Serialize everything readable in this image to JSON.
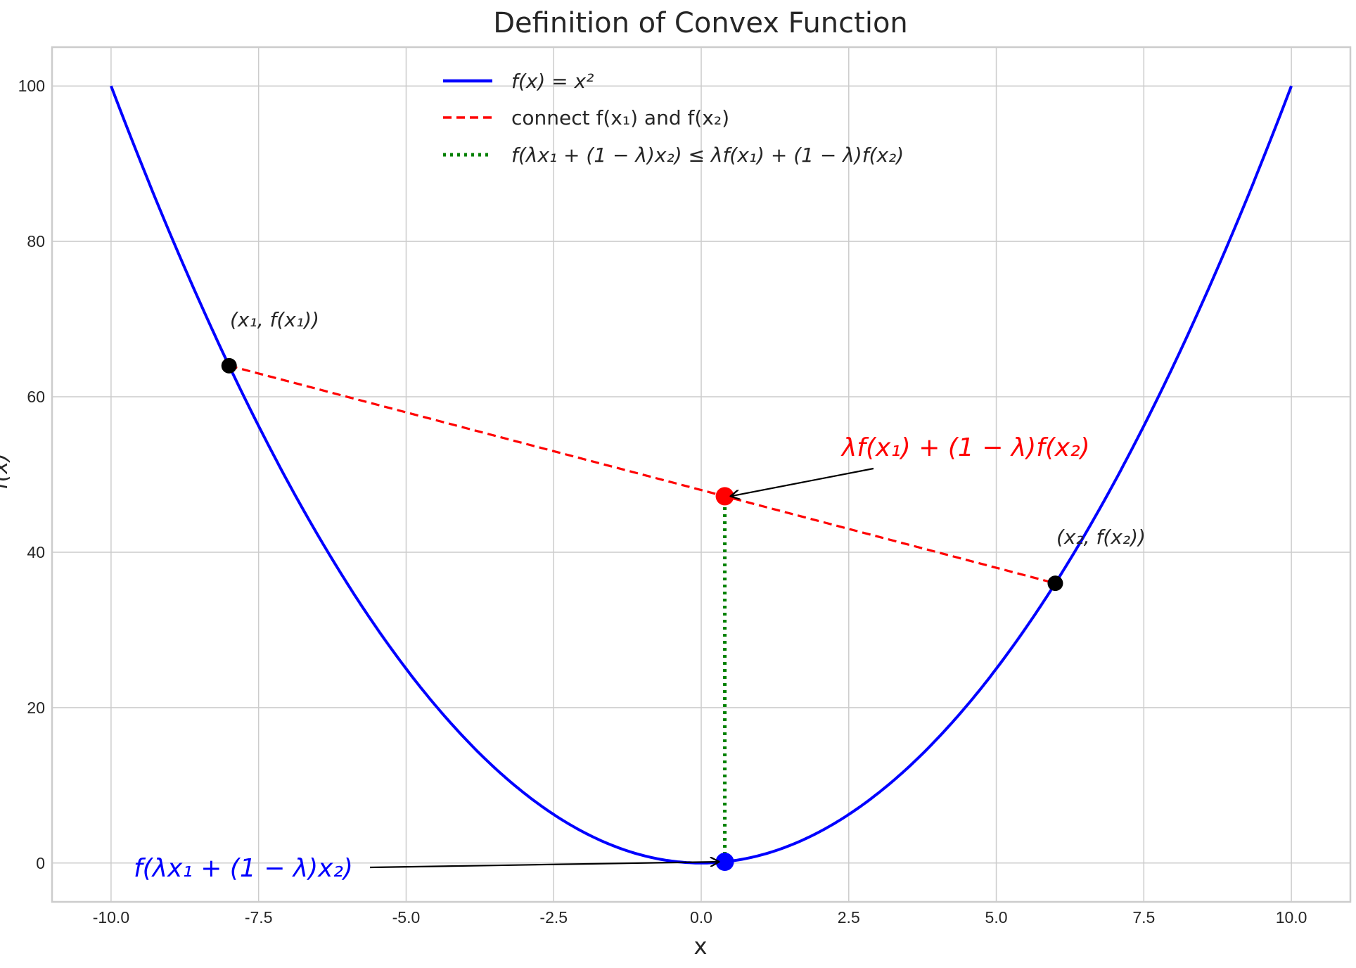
{
  "chart_data": {
    "type": "line",
    "title": "Definition of Convex Function",
    "xlabel": "x",
    "ylabel": "f(x)",
    "xlim": [
      -11,
      11
    ],
    "ylim": [
      -5,
      105
    ],
    "xticks": [
      -10,
      -7.5,
      -5,
      -2.5,
      0,
      2.5,
      5,
      7.5,
      10
    ],
    "xtick_labels": [
      "-10.0",
      "-7.5",
      "-5.0",
      "-2.5",
      "0.0",
      "2.5",
      "5.0",
      "7.5",
      "10.0"
    ],
    "yticks": [
      0,
      20,
      40,
      60,
      80,
      100
    ],
    "ytick_labels": [
      "0",
      "20",
      "40",
      "60",
      "80",
      "100"
    ],
    "grid": true,
    "legend_position": "top-center",
    "series": [
      {
        "name": "f(x) = x²",
        "kind": "curve",
        "function": "x^2",
        "x_range": [
          -10,
          10
        ],
        "color": "#0000ff",
        "style": "solid"
      },
      {
        "name": "connect f(x₁) and f(x₂)",
        "kind": "segment",
        "x": [
          -8,
          6
        ],
        "y": [
          64,
          36
        ],
        "color": "#ff0000",
        "style": "dashed"
      },
      {
        "name": "f(λx₁ + (1 − λ)x₂) ≤ λf(x₁) + (1 − λ)f(x₂)",
        "kind": "segment",
        "x": [
          0.4,
          0.4
        ],
        "y": [
          0.16,
          47.2
        ],
        "color": "#008000",
        "style": "dotted"
      }
    ],
    "points": [
      {
        "x": -8,
        "y": 64,
        "color": "#000000"
      },
      {
        "x": 6,
        "y": 36,
        "color": "#000000"
      },
      {
        "x": 0.4,
        "y": 47.2,
        "color": "#ff0000"
      },
      {
        "x": 0.4,
        "y": 0.16,
        "color": "#0000ff"
      }
    ],
    "annotations": [
      {
        "text": "(x₁, f(x₁))",
        "color": "#262626"
      },
      {
        "text": "(x₂, f(x₂))",
        "color": "#262626"
      },
      {
        "text": "λf(x₁) + (1 − λ)f(x₂)",
        "color": "#ff0000",
        "arrow_to": [
          0.4,
          47.2
        ]
      },
      {
        "text": "f(λx₁ + (1 − λ)x₂)",
        "color": "#0000ff",
        "arrow_to": [
          0.4,
          0.16
        ]
      }
    ]
  }
}
